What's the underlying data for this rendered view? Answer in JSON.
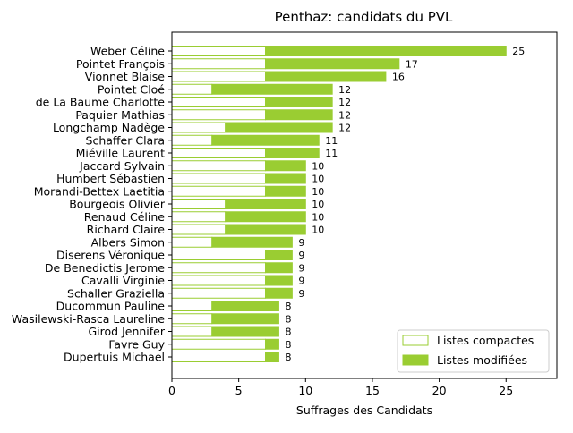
{
  "chart_data": {
    "type": "bar",
    "orientation": "horizontal",
    "stacked": true,
    "title": "Penthaz: candidats du PVL",
    "xlabel": "Suffrages des Candidats",
    "ylabel": "",
    "xlim": [
      0,
      28.8
    ],
    "xticks": [
      0,
      5,
      10,
      15,
      20,
      25
    ],
    "grid": false,
    "legend_position": "lower-right",
    "colors": {
      "accent": "#9acd32",
      "compact_fill": "#ffffff",
      "axis": "#000000"
    },
    "categories": [
      "Weber Céline",
      "Pointet François",
      "Vionnet Blaise",
      "Pointet Cloé",
      "de La Baume Charlotte",
      "Paquier Mathias",
      "Longchamp Nadège",
      "Schaffer Clara",
      "Miéville Laurent",
      "Jaccard Sylvain",
      "Humbert Sébastien",
      "Morandi-Bettex Laetitia",
      "Bourgeois Olivier",
      "Renaud Céline",
      "Richard Claire",
      "Albers Simon",
      "Diserens Véronique",
      "De Benedictis Jerome",
      "Cavalli Virginie",
      "Schaller Graziella",
      "Ducommun Pauline",
      "Wasilewski-Rasca Laureline",
      "Girod Jennifer",
      "Favre Guy",
      "Dupertuis Michael"
    ],
    "series": [
      {
        "name": "Listes compactes",
        "values": [
          7,
          7,
          7,
          3,
          7,
          7,
          4,
          3,
          7,
          7,
          7,
          7,
          4,
          4,
          4,
          3,
          7,
          7,
          7,
          7,
          3,
          3,
          3,
          7,
          7
        ]
      },
      {
        "name": "Listes modifiées",
        "values": [
          18,
          10,
          9,
          9,
          5,
          5,
          8,
          8,
          4,
          3,
          3,
          3,
          6,
          6,
          6,
          6,
          2,
          2,
          2,
          2,
          5,
          5,
          5,
          1,
          1
        ]
      }
    ],
    "totals": [
      25,
      17,
      16,
      12,
      12,
      12,
      12,
      11,
      11,
      10,
      10,
      10,
      10,
      10,
      10,
      9,
      9,
      9,
      9,
      9,
      8,
      8,
      8,
      8,
      8
    ]
  }
}
